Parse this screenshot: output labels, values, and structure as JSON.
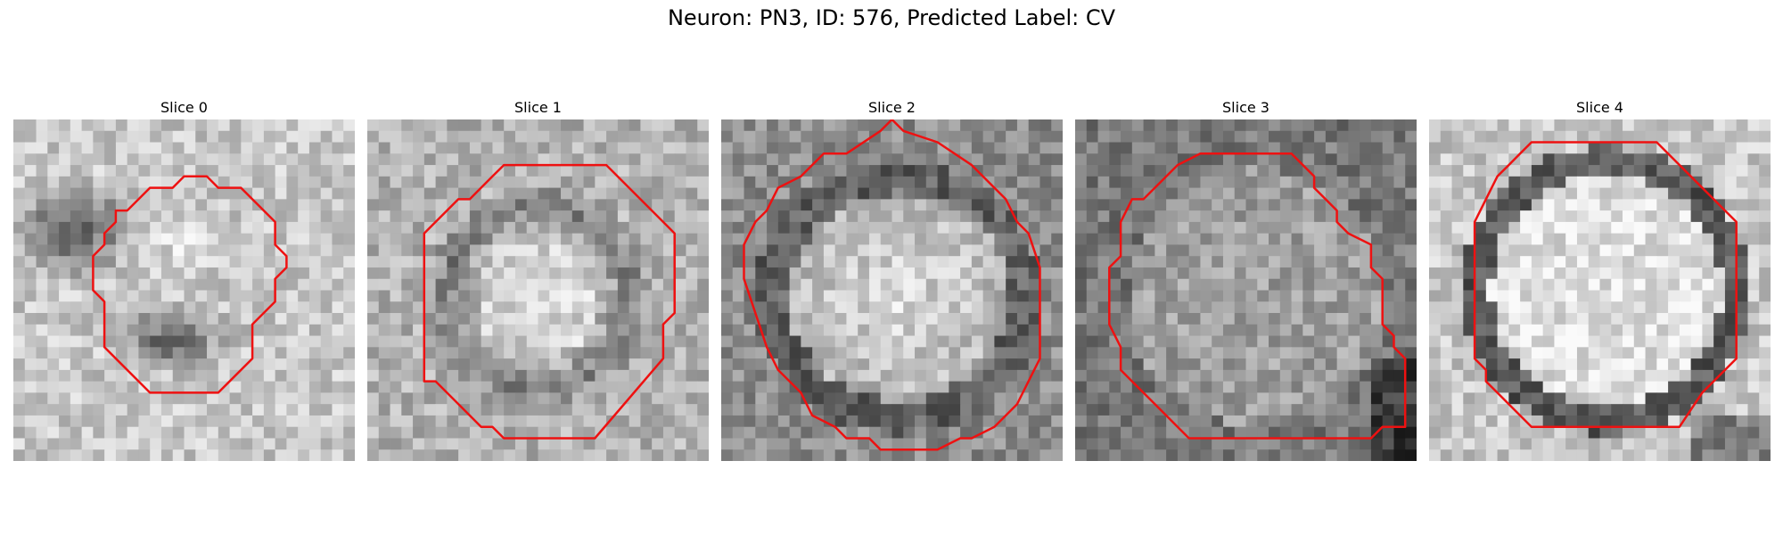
{
  "figure": {
    "title": "Neuron: PN3, ID: 576, Predicted Label: CV"
  },
  "panels": [
    {
      "title": "Slice 0"
    },
    {
      "title": "Slice 1"
    },
    {
      "title": "Slice 2"
    },
    {
      "title": "Slice 3"
    },
    {
      "title": "Slice 4"
    }
  ],
  "colors": {
    "contour": "#ee1111",
    "background": "#ffffff"
  }
}
